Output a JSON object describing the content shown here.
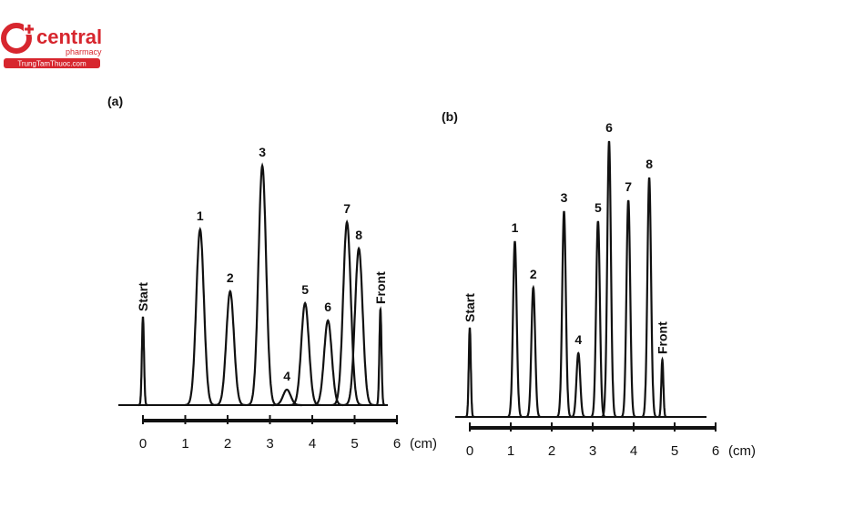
{
  "logo": {
    "brand": "central",
    "sub": "pharmacy",
    "site": "TrungTamThuoc.com"
  },
  "chart_data": [
    {
      "type": "chromatogram",
      "title": "(a)",
      "xlabel": "(cm)",
      "xlim": [
        0,
        6
      ],
      "xticks": [
        0,
        1,
        2,
        3,
        4,
        5,
        6
      ],
      "peaks": [
        {
          "label": "Start",
          "x": 0,
          "height": 97
        },
        {
          "label": "1",
          "x": 1.35,
          "height": 193
        },
        {
          "label": "2",
          "x": 2.06,
          "height": 125
        },
        {
          "label": "3",
          "x": 2.82,
          "height": 263
        },
        {
          "label": "4",
          "x": 3.4,
          "height": 17
        },
        {
          "label": "5",
          "x": 3.83,
          "height": 112
        },
        {
          "label": "6",
          "x": 4.37,
          "height": 93
        },
        {
          "label": "7",
          "x": 4.82,
          "height": 201
        },
        {
          "label": "8",
          "x": 5.1,
          "height": 172
        },
        {
          "label": "Front",
          "x": 5.61,
          "height": 105
        }
      ]
    },
    {
      "type": "chromatogram",
      "title": "(b)",
      "xlabel": "(cm)",
      "xlim": [
        0,
        6
      ],
      "xticks": [
        0,
        1,
        2,
        3,
        4,
        5,
        6
      ],
      "peaks": [
        {
          "label": "Start",
          "x": 0,
          "height": 98
        },
        {
          "label": "1",
          "x": 1.1,
          "height": 193
        },
        {
          "label": "2",
          "x": 1.55,
          "height": 142
        },
        {
          "label": "3",
          "x": 2.3,
          "height": 226
        },
        {
          "label": "4",
          "x": 2.65,
          "height": 70
        },
        {
          "label": "5",
          "x": 3.13,
          "height": 215
        },
        {
          "label": "6",
          "x": 3.4,
          "height": 303
        },
        {
          "label": "7",
          "x": 3.87,
          "height": 238
        },
        {
          "label": "8",
          "x": 4.38,
          "height": 263
        },
        {
          "label": "Front",
          "x": 4.7,
          "height": 63
        }
      ]
    }
  ]
}
